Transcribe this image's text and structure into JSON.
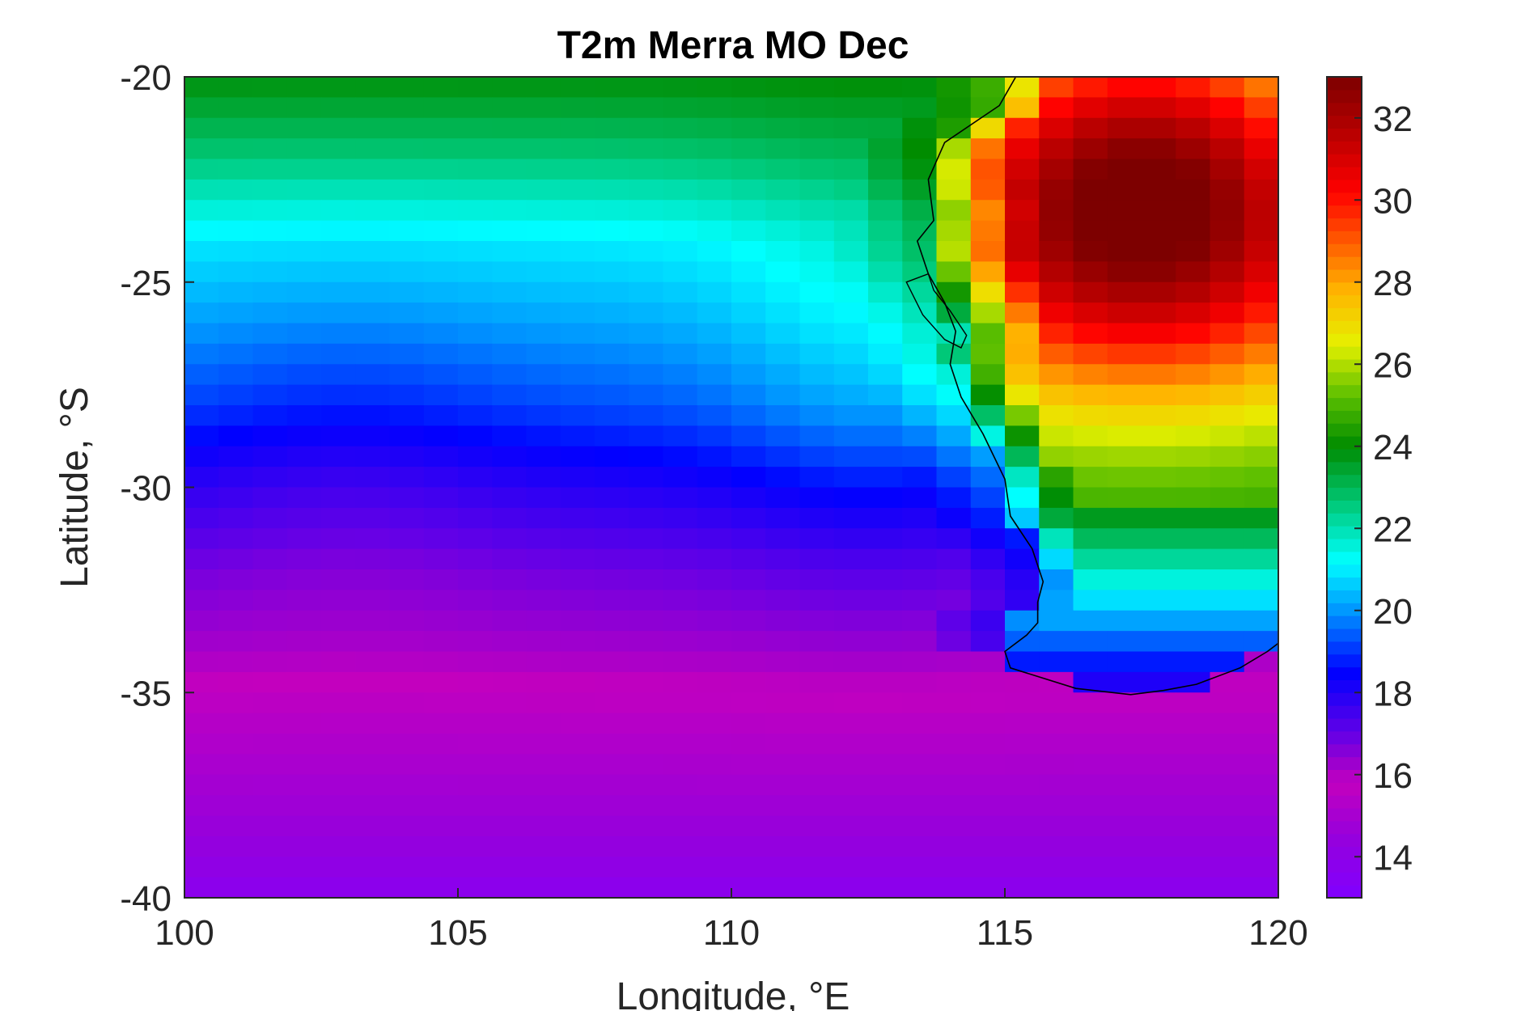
{
  "chart_data": {
    "type": "heatmap",
    "title": "T2m Merra MO Dec",
    "xlabel": "Longitude, °E",
    "ylabel": "Latitude, °S",
    "xlim": [
      100,
      120
    ],
    "ylim": [
      -40,
      -20
    ],
    "x_ticks": [
      "100",
      "105",
      "110",
      "115",
      "120"
    ],
    "y_ticks": [
      "-20",
      "-25",
      "-30",
      "-35",
      "-40"
    ],
    "colorbar": {
      "clim": [
        13,
        33
      ],
      "ticks": [
        "14",
        "16",
        "18",
        "20",
        "22",
        "24",
        "26",
        "28",
        "30",
        "32"
      ],
      "colormap": "jet-like with magenta low end",
      "placement": "right"
    },
    "grid_resolution_deg": {
      "lon": 0.625,
      "lat": 0.5
    },
    "ocean_profile_by_latitude": [
      {
        "lat": -20,
        "t": 23.9
      },
      {
        "lat": -22,
        "t": 22.6
      },
      {
        "lat": -24,
        "t": 21.0
      },
      {
        "lat": -26,
        "t": 20.2
      },
      {
        "lat": -28,
        "t": 19.3
      },
      {
        "lat": -30,
        "t": 18.0
      },
      {
        "lat": -32,
        "t": 16.9
      },
      {
        "lat": -34,
        "t": 16.2
      },
      {
        "lat": -35.5,
        "t": 15.5
      },
      {
        "lat": -37,
        "t": 15.0
      },
      {
        "lat": -38.5,
        "t": 14.5
      },
      {
        "lat": -40,
        "t": 13.7
      }
    ],
    "land_hot_spot": {
      "lon": 117.5,
      "lat": -22.8,
      "t_max": 32.6
    },
    "land_cool_strip": {
      "lat_north": -32,
      "lat_south": -34.5,
      "t_min": 20.5
    },
    "coastline": "Western Australia"
  }
}
